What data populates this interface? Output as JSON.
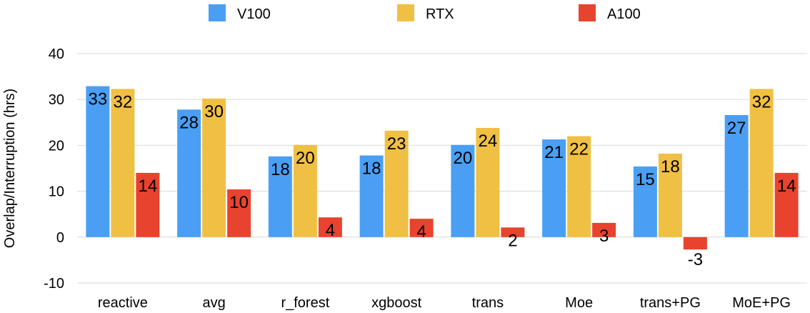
{
  "chart_data": {
    "type": "bar",
    "title": "",
    "xlabel": "",
    "ylabel": "Overlap/Interruption (hrs)",
    "ylim": [
      -10,
      40
    ],
    "yticks": [
      -10,
      0,
      10,
      20,
      30,
      40
    ],
    "grid": true,
    "legend_position": "top",
    "categories": [
      "reactive",
      "avg",
      "r_forest",
      "xgboost",
      "trans",
      "Moe",
      "trans+PG",
      "MoE+PG"
    ],
    "series": [
      {
        "name": "V100",
        "color": "#4a9ff5",
        "values": [
          33,
          28,
          18,
          18,
          20,
          21,
          15,
          27
        ],
        "raw": [
          32.9,
          27.8,
          17.6,
          17.8,
          20.1,
          21.3,
          15.4,
          26.6
        ]
      },
      {
        "name": "RTX",
        "color": "#f0c044",
        "values": [
          32,
          30,
          20,
          23,
          24,
          22,
          18,
          32
        ],
        "raw": [
          32.3,
          30.2,
          20.1,
          23.2,
          23.8,
          22.0,
          18.2,
          32.3
        ]
      },
      {
        "name": "A100",
        "color": "#e8432e",
        "values": [
          14,
          10,
          4,
          4,
          2,
          3,
          -3,
          14
        ],
        "raw": [
          14.0,
          10.4,
          4.3,
          4.0,
          2.1,
          3.1,
          -2.7,
          14.0
        ]
      }
    ]
  }
}
